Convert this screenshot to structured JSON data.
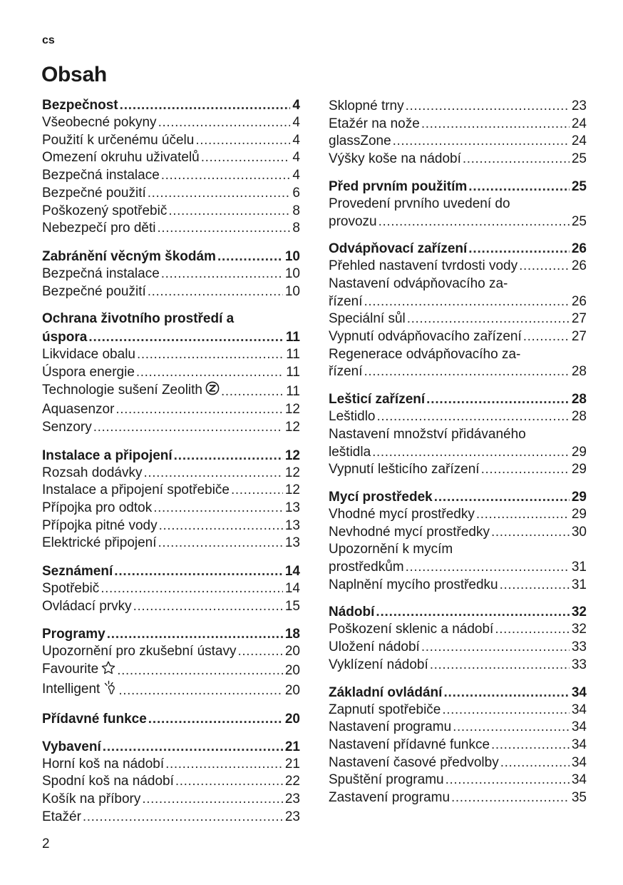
{
  "header": {
    "lang": "cs",
    "title": "Obsah"
  },
  "footer": {
    "page_number": "2"
  },
  "left": [
    {
      "title": "Bezpečnost",
      "page": "4",
      "items": [
        {
          "text": "Všeobecné pokyny",
          "page": "4"
        },
        {
          "text": "Použití k určenému účelu",
          "page": "4"
        },
        {
          "text": "Omezení okruhu uživatelů",
          "page": "4"
        },
        {
          "text": "Bezpečná instalace",
          "page": "4"
        },
        {
          "text": "Bezpečné použití",
          "page": "6"
        },
        {
          "text": "Poškozený spotřebič",
          "page": "8"
        },
        {
          "text": "Nebezpečí pro děti",
          "page": "8"
        }
      ]
    },
    {
      "title": "Zabránění věcným škodám",
      "page": "10",
      "items": [
        {
          "text": "Bezpečná instalace",
          "page": "10"
        },
        {
          "text": "Bezpečné použití",
          "page": "10"
        }
      ]
    },
    {
      "title_first": "Ochrana životního prostředí a",
      "title": "úspora",
      "page": "11",
      "items": [
        {
          "text": "Likvidace obalu",
          "page": "11"
        },
        {
          "text": "Úspora energie",
          "page": "11"
        },
        {
          "text": "Technologie sušení Zeolith",
          "icon": "zeolith-icon",
          "page": "11"
        },
        {
          "text": "Aquasenzor",
          "page": "12"
        },
        {
          "text": "Senzory",
          "page": "12"
        }
      ]
    },
    {
      "title": "Instalace a připojení",
      "page": "12",
      "items": [
        {
          "text": "Rozsah dodávky",
          "page": "12"
        },
        {
          "text": "Instalace a připojení spotřebiče",
          "page": "12"
        },
        {
          "text": "Přípojka pro odtok",
          "page": "13"
        },
        {
          "text": "Přípojka pitné vody",
          "page": "13"
        },
        {
          "text": "Elektrické připojení",
          "page": "13"
        }
      ]
    },
    {
      "title": "Seznámení",
      "page": "14",
      "items": [
        {
          "text": "Spotřebič",
          "page": "14"
        },
        {
          "text": "Ovládací prvky",
          "page": "15"
        }
      ]
    },
    {
      "title": "Programy",
      "page": "18",
      "items": [
        {
          "text": "Upozornění pro zkušební ústavy",
          "page": "20"
        },
        {
          "text": "Favourite",
          "icon": "star-icon",
          "page": "20"
        },
        {
          "text": "Intelligent",
          "icon": "intelligent-icon",
          "page": "20"
        }
      ]
    },
    {
      "title": "Přídavné funkce",
      "page": "20",
      "items": []
    },
    {
      "title": "Vybavení",
      "page": "21",
      "items": [
        {
          "text": "Horní koš na nádobí",
          "page": "21"
        },
        {
          "text": "Spodní koš na nádobí",
          "page": "22"
        },
        {
          "text": "Košík na příbory",
          "page": "23"
        },
        {
          "text": "Etažér",
          "page": "23"
        }
      ]
    }
  ],
  "right": [
    {
      "items": [
        {
          "text": "Sklopné trny",
          "page": "23"
        },
        {
          "text": "Etažér na nože",
          "page": "24"
        },
        {
          "text": "glassZone",
          "page": "24"
        },
        {
          "text": "Výšky koše na nádobí",
          "page": "25"
        }
      ]
    },
    {
      "title": "Před prvním použitím",
      "page": "25",
      "items": [
        {
          "first": "Provedení prvního uvedení do",
          "text": "provozu",
          "page": "25"
        }
      ]
    },
    {
      "title": "Odvápňovací zařízení",
      "page": "26",
      "items": [
        {
          "text": "Přehled nastavení tvrdosti vody",
          "page": "26"
        },
        {
          "first": "Nastavení odvápňovacího za-",
          "text": "řízení",
          "page": "26"
        },
        {
          "text": "Speciální sůl",
          "page": "27"
        },
        {
          "text": "Vypnutí odvápňovacího zařízení",
          "page": "27"
        },
        {
          "first": "Regenerace odvápňovacího za-",
          "text": "řízení",
          "page": "28"
        }
      ]
    },
    {
      "title": "Lešticí zařízení",
      "page": "28",
      "items": [
        {
          "text": "Leštidlo",
          "page": "28"
        },
        {
          "first": "Nastavení množství přidávaného",
          "text": "leštidla",
          "page": "29"
        },
        {
          "text": "Vypnutí lešticího zařízení",
          "page": "29"
        }
      ]
    },
    {
      "title": "Mycí prostředek",
      "page": "29",
      "items": [
        {
          "text": "Vhodné mycí prostředky",
          "page": "29"
        },
        {
          "text": "Nevhodné mycí prostředky",
          "page": "30"
        },
        {
          "first": "Upozornění k mycím",
          "text": "prostředkům",
          "page": "31"
        },
        {
          "text": "Naplnění mycího prostředku",
          "page": "31"
        }
      ]
    },
    {
      "title": "Nádobí",
      "page": "32",
      "items": [
        {
          "text": "Poškození sklenic a nádobí",
          "page": "32"
        },
        {
          "text": "Uložení nádobí",
          "page": "33"
        },
        {
          "text": "Vyklízení nádobí",
          "page": "33"
        }
      ]
    },
    {
      "title": "Základní ovládání",
      "page": "34",
      "items": [
        {
          "text": "Zapnutí spotřebiče",
          "page": "34"
        },
        {
          "text": "Nastavení programu",
          "page": "34"
        },
        {
          "text": "Nastavení přídavné funkce",
          "page": "34"
        },
        {
          "text": "Nastavení časové předvolby",
          "page": "34"
        },
        {
          "text": "Spuštění programu",
          "page": "34"
        },
        {
          "text": "Zastavení programu",
          "page": "35"
        }
      ]
    }
  ]
}
